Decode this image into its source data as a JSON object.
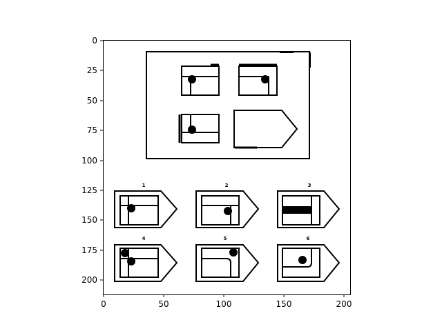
{
  "figure": {
    "x_ticks": [
      "0",
      "50",
      "100",
      "150",
      "200"
    ],
    "y_ticks": [
      "0",
      "25",
      "50",
      "75",
      "100",
      "125",
      "150",
      "175",
      "200"
    ]
  },
  "puzzle": {
    "prompt_panel": "shapes with dot markers, missing fourth",
    "options": [
      {
        "label": "1"
      },
      {
        "label": "2"
      },
      {
        "label": "3"
      },
      {
        "label": "4"
      },
      {
        "label": "5"
      },
      {
        "label": "6"
      }
    ]
  }
}
